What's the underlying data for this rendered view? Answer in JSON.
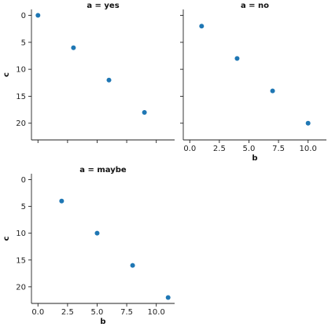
{
  "chart_data": {
    "type": "scatter",
    "layout": "facet-grid-2x2",
    "shared_x": true,
    "shared_y": true,
    "y_inverted": true,
    "xlabel": "b",
    "ylabel": "c",
    "xlim": [
      -0.55,
      11.55
    ],
    "ylim": [
      23.1,
      -1.1
    ],
    "xticks": [
      0.0,
      2.5,
      5.0,
      7.5,
      10.0
    ],
    "xtick_labels": [
      "0.0",
      "2.5",
      "5.0",
      "7.5",
      "10.0"
    ],
    "yticks": [
      0,
      5,
      10,
      15,
      20
    ],
    "ytick_labels": [
      "0",
      "5",
      "10",
      "15",
      "20"
    ],
    "marker_color": "#1f77b4",
    "grid": false,
    "panels": [
      {
        "title": "a = yes",
        "x": [
          0,
          3,
          6,
          9
        ],
        "y": [
          0,
          6,
          12,
          18
        ]
      },
      {
        "title": "a = no",
        "x": [
          1,
          4,
          7,
          10
        ],
        "y": [
          2,
          8,
          14,
          20
        ]
      },
      {
        "title": "a = maybe",
        "x": [
          2,
          5,
          8,
          11
        ],
        "y": [
          4,
          10,
          16,
          22
        ]
      }
    ]
  }
}
